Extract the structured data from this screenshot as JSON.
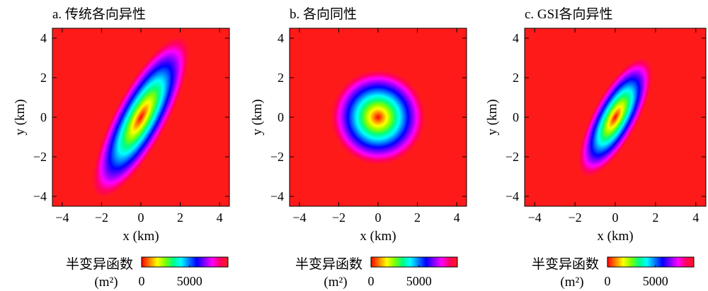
{
  "chart_data": [
    {
      "type": "heatmap",
      "title": "a. 传统各向异性",
      "xlabel": "x (km)",
      "ylabel": "y (km)",
      "xlim": [
        -4.5,
        4.5
      ],
      "ylim": [
        -4.5,
        4.5
      ],
      "xticks": [
        -4,
        -2,
        0,
        2,
        4
      ],
      "yticks": [
        -4,
        -2,
        0,
        2,
        4
      ],
      "xtick_labels": [
        "−4",
        "−2",
        "0",
        "2",
        "4"
      ],
      "ytick_labels": [
        "−4",
        "−2",
        "0",
        "2",
        "4"
      ],
      "model": "anisotropic ellipse",
      "major_axis_angle_deg": 62,
      "major_range_km": 4.6,
      "minor_range_km": 1.35,
      "colorbar": {
        "title_line1": "半变异函数",
        "title_line2": "(m²)",
        "range": [
          0,
          9000
        ],
        "ticks": [
          0,
          5000
        ],
        "tick_labels": [
          "0",
          "5000"
        ]
      }
    },
    {
      "type": "heatmap",
      "title": "b. 各向同性",
      "xlabel": "x (km)",
      "ylabel": "y (km)",
      "xlim": [
        -4.5,
        4.5
      ],
      "ylim": [
        -4.5,
        4.5
      ],
      "xticks": [
        -4,
        -2,
        0,
        2,
        4
      ],
      "yticks": [
        -4,
        -2,
        0,
        2,
        4
      ],
      "xtick_labels": [
        "−4",
        "−2",
        "0",
        "2",
        "4"
      ],
      "ytick_labels": [
        "−4",
        "−2",
        "0",
        "2",
        "4"
      ],
      "model": "isotropic circle",
      "major_axis_angle_deg": 0,
      "major_range_km": 2.4,
      "minor_range_km": 2.4,
      "colorbar": {
        "title_line1": "半变异函数",
        "title_line2": "(m²)",
        "range": [
          0,
          9000
        ],
        "ticks": [
          0,
          5000
        ],
        "tick_labels": [
          "0",
          "5000"
        ]
      }
    },
    {
      "type": "heatmap",
      "title": "c. GSI各向异性",
      "xlabel": "x (km)",
      "ylabel": "y (km)",
      "xlim": [
        -4.5,
        4.5
      ],
      "ylim": [
        -4.5,
        4.5
      ],
      "xticks": [
        -4,
        -2,
        0,
        2,
        4
      ],
      "yticks": [
        -4,
        -2,
        0,
        2,
        4
      ],
      "xtick_labels": [
        "−4",
        "−2",
        "0",
        "2",
        "4"
      ],
      "ytick_labels": [
        "−4",
        "−2",
        "0",
        "2",
        "4"
      ],
      "model": "GSI anisotropic ellipse",
      "major_axis_angle_deg": 62,
      "major_range_km": 3.3,
      "minor_range_km": 1.15,
      "colorbar": {
        "title_line1": "半变异函数",
        "title_line2": "(m²)",
        "range": [
          0,
          9000
        ],
        "ticks": [
          0,
          5000
        ],
        "tick_labels": [
          "0",
          "5000"
        ]
      }
    }
  ],
  "colors": {
    "background_field": "#ff1a1a",
    "colormap_stops": [
      "#ff0000",
      "#ff8000",
      "#ffff00",
      "#80ff00",
      "#00ff80",
      "#00ffff",
      "#0080ff",
      "#0000ff",
      "#8000ff",
      "#ff00ff",
      "#ff0060",
      "#ff1a1a"
    ]
  }
}
